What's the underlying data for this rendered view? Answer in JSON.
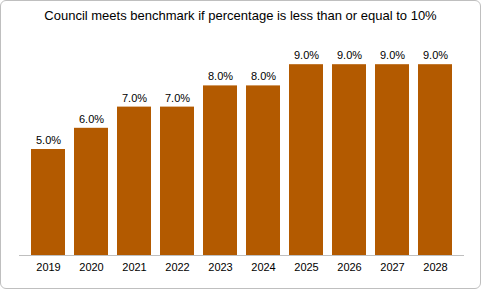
{
  "chart_data": {
    "type": "bar",
    "title": "Council meets benchmark if percentage is less than or equal to 10%",
    "categories": [
      "2019",
      "2020",
      "2021",
      "2022",
      "2023",
      "2024",
      "2025",
      "2026",
      "2027",
      "2028"
    ],
    "values": [
      5,
      6,
      7,
      7,
      8,
      8,
      9,
      9,
      9,
      9
    ],
    "value_labels": [
      "5.0%",
      "6.0%",
      "7.0%",
      "7.0%",
      "8.0%",
      "8.0%",
      "9.0%",
      "9.0%",
      "9.0%",
      "9.0%"
    ],
    "color": "#b35a00",
    "ylim": [
      0,
      10
    ],
    "grid": false,
    "data_labels": true,
    "tick_labels": "x"
  }
}
